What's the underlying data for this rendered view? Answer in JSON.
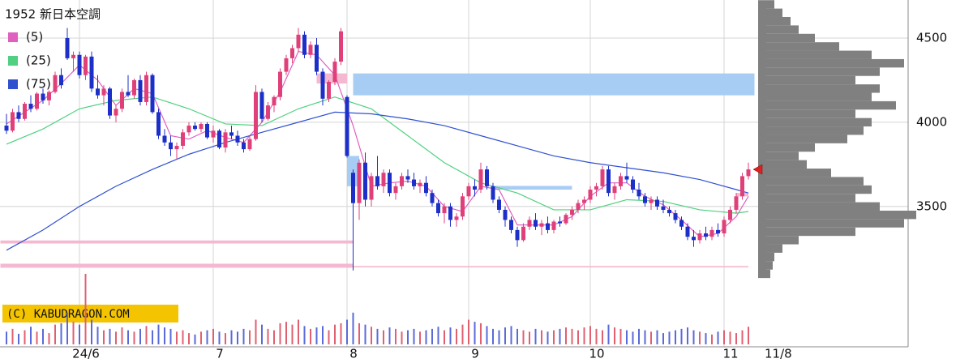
{
  "chart_data": {
    "type": "candlestick",
    "title": "1952 新日本空調",
    "credit": "(C) KABUDRAGON.COM",
    "last_date": "11/8",
    "up_color": "#e0407a",
    "down_color": "#1c2fc8",
    "ylim": [
      3090,
      4726
    ],
    "yticks": [
      3500,
      4000,
      4500
    ],
    "grid": true,
    "categories": [
      null,
      null,
      null,
      null,
      null,
      null,
      null,
      null,
      null,
      null,
      null,
      null,
      "24/6",
      null,
      null,
      null,
      null,
      null,
      null,
      null,
      null,
      null,
      null,
      null,
      null,
      null,
      null,
      null,
      null,
      null,
      null,
      null,
      null,
      null,
      "7",
      null,
      null,
      null,
      null,
      null,
      null,
      null,
      null,
      null,
      null,
      null,
      null,
      null,
      null,
      null,
      null,
      null,
      null,
      null,
      null,
      null,
      "8",
      null,
      null,
      null,
      null,
      null,
      null,
      null,
      null,
      null,
      null,
      null,
      null,
      null,
      null,
      null,
      null,
      null,
      null,
      null,
      "9",
      null,
      null,
      null,
      null,
      null,
      null,
      null,
      null,
      null,
      null,
      null,
      null,
      null,
      null,
      null,
      null,
      null,
      null,
      null,
      "10",
      null,
      null,
      null,
      null,
      null,
      null,
      null,
      null,
      null,
      null,
      null,
      null,
      null,
      null,
      null,
      null,
      null,
      null,
      null,
      null,
      null,
      "11",
      null,
      null,
      null,
      null
    ],
    "candles": [
      [
        3980,
        4050,
        3930,
        3950
      ],
      [
        3950,
        4080,
        3940,
        4060
      ],
      [
        4060,
        4100,
        4000,
        4020
      ],
      [
        4020,
        4120,
        4010,
        4110
      ],
      [
        4110,
        4160,
        4060,
        4080
      ],
      [
        4080,
        4180,
        4070,
        4170
      ],
      [
        4170,
        4200,
        4110,
        4130
      ],
      [
        4130,
        4190,
        4100,
        4180
      ],
      [
        4180,
        4300,
        4170,
        4280
      ],
      [
        4280,
        4320,
        4200,
        4220
      ],
      [
        4500,
        4560,
        4370,
        4380
      ],
      [
        4380,
        4420,
        4300,
        4400
      ],
      [
        4400,
        4420,
        4260,
        4280
      ],
      [
        4280,
        4400,
        4250,
        4390
      ],
      [
        4390,
        4420,
        4180,
        4200
      ],
      [
        4200,
        4280,
        4140,
        4160
      ],
      [
        4160,
        4220,
        4100,
        4200
      ],
      [
        4200,
        4210,
        4020,
        4040
      ],
      [
        4040,
        4100,
        4000,
        4080
      ],
      [
        4080,
        4200,
        4060,
        4180
      ],
      [
        4180,
        4280,
        4150,
        4160
      ],
      [
        4160,
        4260,
        4140,
        4250
      ],
      [
        4250,
        4280,
        4100,
        4120
      ],
      [
        4120,
        4300,
        4100,
        4280
      ],
      [
        4280,
        4290,
        4050,
        4060
      ],
      [
        4060,
        4080,
        3900,
        3920
      ],
      [
        3920,
        3960,
        3860,
        3880
      ],
      [
        3880,
        3920,
        3800,
        3840
      ],
      [
        3840,
        3880,
        3780,
        3860
      ],
      [
        3860,
        3960,
        3840,
        3940
      ],
      [
        3940,
        4000,
        3920,
        3980
      ],
      [
        3980,
        4000,
        3950,
        3960
      ],
      [
        3960,
        4000,
        3940,
        3990
      ],
      [
        3990,
        4000,
        3900,
        3910
      ],
      [
        3910,
        3980,
        3880,
        3950
      ],
      [
        3950,
        3960,
        3840,
        3850
      ],
      [
        3850,
        3960,
        3820,
        3940
      ],
      [
        3940,
        3980,
        3900,
        3920
      ],
      [
        3920,
        3950,
        3860,
        3880
      ],
      [
        3880,
        3900,
        3820,
        3840
      ],
      [
        3840,
        3920,
        3830,
        3900
      ],
      [
        3900,
        4220,
        3890,
        4180
      ],
      [
        4180,
        4200,
        4000,
        4020
      ],
      [
        4020,
        4120,
        4010,
        4100
      ],
      [
        4100,
        4160,
        4060,
        4150
      ],
      [
        4150,
        4320,
        4130,
        4300
      ],
      [
        4300,
        4400,
        4280,
        4380
      ],
      [
        4380,
        4460,
        4350,
        4440
      ],
      [
        4440,
        4560,
        4420,
        4520
      ],
      [
        4520,
        4540,
        4380,
        4400
      ],
      [
        4400,
        4480,
        4380,
        4460
      ],
      [
        4460,
        4500,
        4280,
        4300
      ],
      [
        4300,
        4320,
        4100,
        4140
      ],
      [
        4140,
        4250,
        4120,
        4240
      ],
      [
        4240,
        4380,
        4220,
        4360
      ],
      [
        4360,
        4560,
        4340,
        4540
      ],
      [
        4150,
        4160,
        3790,
        3800
      ],
      [
        3700,
        3720,
        3120,
        3520
      ],
      [
        3520,
        3780,
        3420,
        3760
      ],
      [
        3760,
        3820,
        3500,
        3540
      ],
      [
        3540,
        3700,
        3500,
        3680
      ],
      [
        3680,
        3800,
        3600,
        3620
      ],
      [
        3620,
        3720,
        3580,
        3700
      ],
      [
        3700,
        3720,
        3560,
        3580
      ],
      [
        3580,
        3640,
        3540,
        3620
      ],
      [
        3620,
        3700,
        3600,
        3680
      ],
      [
        3680,
        3720,
        3640,
        3660
      ],
      [
        3660,
        3700,
        3600,
        3620
      ],
      [
        3620,
        3660,
        3580,
        3640
      ],
      [
        3640,
        3680,
        3560,
        3580
      ],
      [
        3580,
        3600,
        3500,
        3520
      ],
      [
        3520,
        3540,
        3440,
        3460
      ],
      [
        3460,
        3520,
        3400,
        3500
      ],
      [
        3500,
        3520,
        3380,
        3420
      ],
      [
        3420,
        3460,
        3380,
        3440
      ],
      [
        3440,
        3580,
        3420,
        3560
      ],
      [
        3560,
        3640,
        3540,
        3620
      ],
      [
        3620,
        3660,
        3560,
        3600
      ],
      [
        3600,
        3760,
        3580,
        3720
      ],
      [
        3720,
        3740,
        3600,
        3620
      ],
      [
        3620,
        3640,
        3520,
        3540
      ],
      [
        3540,
        3560,
        3460,
        3480
      ],
      [
        3480,
        3500,
        3380,
        3420
      ],
      [
        3420,
        3440,
        3340,
        3360
      ],
      [
        3360,
        3380,
        3260,
        3300
      ],
      [
        3300,
        3400,
        3290,
        3380
      ],
      [
        3380,
        3440,
        3360,
        3420
      ],
      [
        3420,
        3460,
        3360,
        3380
      ],
      [
        3380,
        3420,
        3330,
        3400
      ],
      [
        3400,
        3440,
        3340,
        3360
      ],
      [
        3360,
        3420,
        3340,
        3410
      ],
      [
        3410,
        3440,
        3380,
        3400
      ],
      [
        3400,
        3460,
        3390,
        3450
      ],
      [
        3450,
        3500,
        3420,
        3480
      ],
      [
        3480,
        3540,
        3460,
        3520
      ],
      [
        3520,
        3560,
        3480,
        3540
      ],
      [
        3540,
        3620,
        3520,
        3600
      ],
      [
        3600,
        3640,
        3560,
        3620
      ],
      [
        3620,
        3740,
        3600,
        3720
      ],
      [
        3720,
        3740,
        3560,
        3580
      ],
      [
        3580,
        3640,
        3540,
        3620
      ],
      [
        3620,
        3700,
        3600,
        3680
      ],
      [
        3680,
        3760,
        3640,
        3660
      ],
      [
        3660,
        3680,
        3580,
        3600
      ],
      [
        3600,
        3640,
        3540,
        3560
      ],
      [
        3560,
        3580,
        3500,
        3520
      ],
      [
        3520,
        3560,
        3480,
        3540
      ],
      [
        3540,
        3560,
        3480,
        3500
      ],
      [
        3500,
        3540,
        3460,
        3480
      ],
      [
        3480,
        3500,
        3440,
        3460
      ],
      [
        3460,
        3480,
        3400,
        3420
      ],
      [
        3420,
        3440,
        3360,
        3380
      ],
      [
        3380,
        3400,
        3300,
        3320
      ],
      [
        3320,
        3360,
        3260,
        3300
      ],
      [
        3300,
        3360,
        3280,
        3340
      ],
      [
        3340,
        3380,
        3300,
        3320
      ],
      [
        3320,
        3380,
        3300,
        3360
      ],
      [
        3360,
        3400,
        3320,
        3340
      ],
      [
        3340,
        3440,
        3320,
        3420
      ],
      [
        3420,
        3500,
        3400,
        3480
      ],
      [
        3480,
        3580,
        3460,
        3560
      ],
      [
        3560,
        3700,
        3540,
        3680
      ],
      [
        3680,
        3760,
        3660,
        3720
      ]
    ],
    "volume": [
      18,
      22,
      15,
      20,
      25,
      18,
      22,
      16,
      28,
      30,
      45,
      32,
      28,
      100,
      35,
      25,
      20,
      22,
      18,
      24,
      20,
      18,
      22,
      26,
      20,
      28,
      24,
      22,
      18,
      20,
      16,
      14,
      18,
      20,
      22,
      18,
      16,
      20,
      18,
      22,
      20,
      35,
      28,
      22,
      20,
      30,
      32,
      28,
      35,
      26,
      22,
      24,
      26,
      20,
      28,
      30,
      35,
      45,
      30,
      28,
      25,
      22,
      20,
      24,
      22,
      18,
      20,
      22,
      18,
      20,
      22,
      25,
      20,
      24,
      22,
      28,
      35,
      32,
      30,
      26,
      22,
      20,
      24,
      26,
      22,
      20,
      18,
      22,
      20,
      18,
      20,
      22,
      24,
      22,
      20,
      24,
      26,
      22,
      20,
      28,
      24,
      22,
      20,
      18,
      22,
      20,
      18,
      20,
      16,
      18,
      20,
      22,
      24,
      20,
      18,
      16,
      14,
      18,
      20,
      18,
      16,
      20,
      25
    ],
    "vlim": [
      0,
      100
    ],
    "series": [
      {
        "name": "(5)",
        "color": "#e060c0",
        "x": [
          0,
          3,
          6,
          9,
          12,
          15,
          18,
          21,
          24,
          27,
          30,
          33,
          36,
          39,
          42,
          45,
          48,
          51,
          54,
          57,
          60,
          63,
          66,
          69,
          72,
          75,
          78,
          81,
          84,
          87,
          90,
          93,
          96,
          99,
          102,
          105,
          108,
          111,
          114,
          117,
          120,
          122
        ],
        "values": [
          3990,
          4060,
          4130,
          4230,
          4340,
          4250,
          4100,
          4200,
          4170,
          3920,
          3900,
          3950,
          3910,
          3880,
          4000,
          4180,
          4420,
          4400,
          4280,
          3980,
          3620,
          3640,
          3650,
          3620,
          3500,
          3470,
          3620,
          3600,
          3390,
          3390,
          3390,
          3440,
          3560,
          3640,
          3640,
          3560,
          3510,
          3420,
          3320,
          3340,
          3440,
          3560
        ]
      },
      {
        "name": "(25)",
        "color": "#50d080",
        "x": [
          0,
          6,
          12,
          18,
          24,
          30,
          36,
          42,
          48,
          54,
          60,
          66,
          72,
          78,
          84,
          90,
          96,
          102,
          108,
          114,
          120,
          122
        ],
        "values": [
          3870,
          3960,
          4080,
          4130,
          4150,
          4080,
          3990,
          3980,
          4080,
          4150,
          4080,
          3920,
          3760,
          3640,
          3580,
          3480,
          3480,
          3540,
          3530,
          3480,
          3460,
          3470
        ]
      },
      {
        "name": "(75)",
        "color": "#3050d0",
        "x": [
          0,
          6,
          12,
          18,
          24,
          30,
          36,
          42,
          48,
          54,
          60,
          66,
          72,
          78,
          84,
          90,
          96,
          102,
          108,
          114,
          120,
          122
        ],
        "values": [
          3240,
          3360,
          3500,
          3620,
          3720,
          3810,
          3880,
          3940,
          4000,
          4060,
          4050,
          4020,
          3980,
          3920,
          3860,
          3800,
          3760,
          3730,
          3700,
          3660,
          3600,
          3580
        ]
      }
    ],
    "zones": [
      {
        "from": -1,
        "to": 57,
        "low": 3280,
        "high": 3298,
        "color": "#f4b8d0"
      },
      {
        "from": -1,
        "to": 57,
        "low": 3136,
        "high": 3160,
        "color": "#f4b8d0"
      },
      {
        "from": 57,
        "to": 122,
        "low": 3138,
        "high": 3146,
        "color": "#f4b8d0"
      },
      {
        "from": 57,
        "to": 123,
        "low": 4160,
        "high": 4290,
        "color": "#a8cdf5"
      },
      {
        "from": 80,
        "to": 93,
        "low": 3600,
        "high": 3622,
        "color": "#a8cdf5"
      },
      {
        "from": 56,
        "to": 58,
        "low": 3620,
        "high": 3800,
        "color": "#a8cdf5"
      },
      {
        "from": 51,
        "to": 56,
        "low": 4230,
        "high": 4290,
        "color": "#f4b8d0"
      },
      {
        "from": 120,
        "to": 122,
        "low": 3560,
        "high": 3580,
        "color": "#f4b8d0"
      }
    ],
    "profile": {
      "color": "#808080",
      "levels": [
        3100,
        3150,
        3200,
        3250,
        3300,
        3350,
        3400,
        3450,
        3500,
        3550,
        3600,
        3650,
        3700,
        3750,
        3800,
        3850,
        3900,
        3950,
        4000,
        4050,
        4100,
        4150,
        4200,
        4250,
        4300,
        4350,
        4400,
        4450,
        4500,
        4550,
        4600,
        4650,
        4700
      ],
      "values": [
        5,
        8,
        10,
        20,
        40,
        110,
        170,
        185,
        140,
        110,
        130,
        120,
        80,
        50,
        40,
        60,
        100,
        120,
        130,
        110,
        160,
        130,
        140,
        110,
        140,
        170,
        130,
        90,
        60,
        40,
        30,
        20,
        10
      ]
    }
  }
}
